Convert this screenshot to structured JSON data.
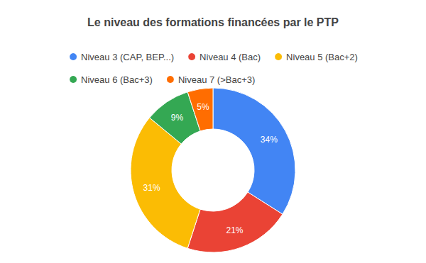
{
  "chart_data": {
    "type": "pie",
    "title": "Le niveau des formations financées par le PTP",
    "categories": [
      "Niveau 3 (CAP, BEP...)",
      "Niveau 4 (Bac)",
      "Niveau 5 (Bac+2)",
      "Niveau 6 (Bac+3)",
      "Niveau 7 (>Bac+3)"
    ],
    "values": [
      34,
      21,
      31,
      9,
      5
    ],
    "value_labels": [
      "34%",
      "21%",
      "31%",
      "9%",
      "5%"
    ],
    "colors": [
      "#4285f4",
      "#ea4335",
      "#fbbc04",
      "#34a853",
      "#ff6d01"
    ],
    "data_labels": true,
    "legend": "top"
  }
}
